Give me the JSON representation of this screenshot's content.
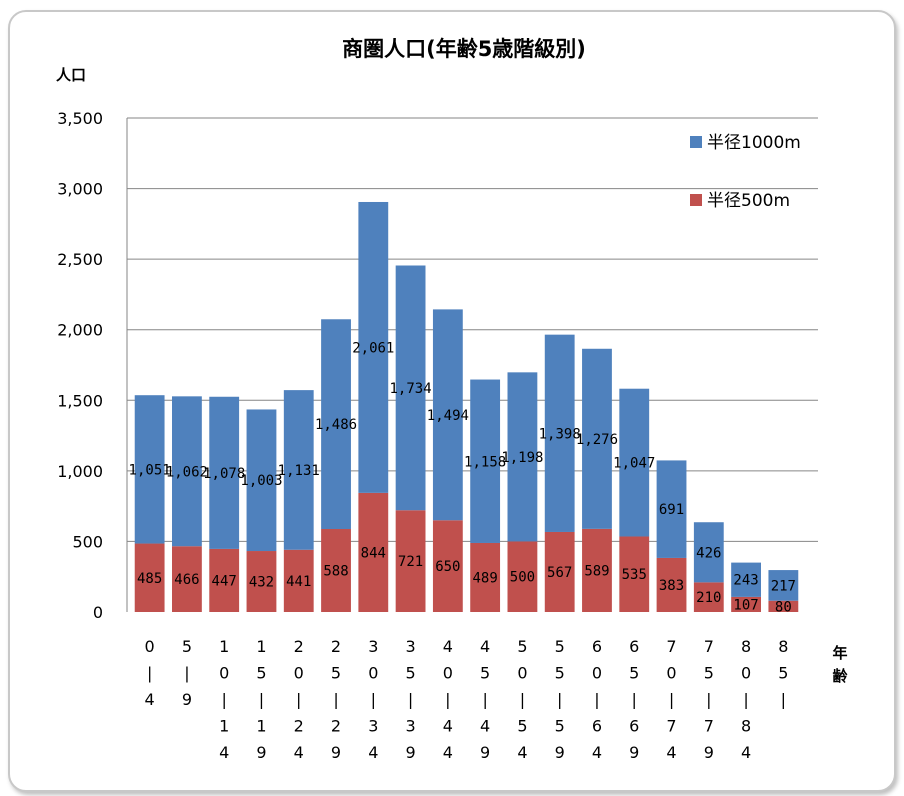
{
  "chart_data": {
    "type": "bar",
    "stacked": true,
    "title": "商圏人口(年齢5歳階級別)",
    "ylabel": "人口",
    "xlabel": "年齢",
    "ylim": [
      0,
      3500
    ],
    "yticks": [
      "0",
      "500",
      "1,000",
      "1,500",
      "2,000",
      "2,500",
      "3,000",
      "3,500"
    ],
    "grid": true,
    "legend_position": "top-right",
    "categories": [
      "0|4",
      "5|9",
      "10|14",
      "15|19",
      "20|24",
      "25|29",
      "30|34",
      "35|39",
      "40|44",
      "45|49",
      "50|54",
      "55|59",
      "60|64",
      "65|69",
      "70|74",
      "75|79",
      "80|84",
      "85|"
    ],
    "category_labels_vertical": [
      [
        "0",
        "|",
        "4"
      ],
      [
        "5",
        "|",
        "9"
      ],
      [
        "1",
        "0",
        "|",
        "1",
        "4"
      ],
      [
        "1",
        "5",
        "|",
        "1",
        "9"
      ],
      [
        "2",
        "0",
        "|",
        "2",
        "4"
      ],
      [
        "2",
        "5",
        "|",
        "2",
        "9"
      ],
      [
        "3",
        "0",
        "|",
        "3",
        "4"
      ],
      [
        "3",
        "5",
        "|",
        "3",
        "9"
      ],
      [
        "4",
        "0",
        "|",
        "4",
        "4"
      ],
      [
        "4",
        "5",
        "|",
        "4",
        "9"
      ],
      [
        "5",
        "0",
        "|",
        "5",
        "4"
      ],
      [
        "5",
        "5",
        "|",
        "5",
        "9"
      ],
      [
        "6",
        "0",
        "|",
        "6",
        "4"
      ],
      [
        "6",
        "5",
        "|",
        "6",
        "9"
      ],
      [
        "7",
        "0",
        "|",
        "7",
        "4"
      ],
      [
        "7",
        "5",
        "|",
        "7",
        "9"
      ],
      [
        "8",
        "0",
        "|",
        "8",
        "4"
      ],
      [
        "8",
        "5",
        "|"
      ]
    ],
    "series": [
      {
        "name": "半径500m",
        "color": "#c0504d",
        "values": [
          485,
          466,
          447,
          432,
          441,
          588,
          844,
          721,
          650,
          489,
          500,
          567,
          589,
          535,
          383,
          210,
          107,
          80
        ],
        "labels": [
          "485",
          "466",
          "447",
          "432",
          "441",
          "588",
          "844",
          "721",
          "650",
          "489",
          "500",
          "567",
          "589",
          "535",
          "383",
          "210",
          "107",
          "80"
        ]
      },
      {
        "name": "半径1000m",
        "color": "#4f81bd",
        "values": [
          1051,
          1062,
          1078,
          1003,
          1131,
          1486,
          2061,
          1734,
          1494,
          1158,
          1198,
          1398,
          1276,
          1047,
          691,
          426,
          243,
          217
        ],
        "labels": [
          "1,051",
          "1,062",
          "1,078",
          "1,003",
          "1,131",
          "1,486",
          "2,061",
          "1,734",
          "1,494",
          "1,158",
          "1,198",
          "1,398",
          "1,276",
          "1,047",
          "691",
          "426",
          "243",
          "217"
        ]
      }
    ]
  }
}
